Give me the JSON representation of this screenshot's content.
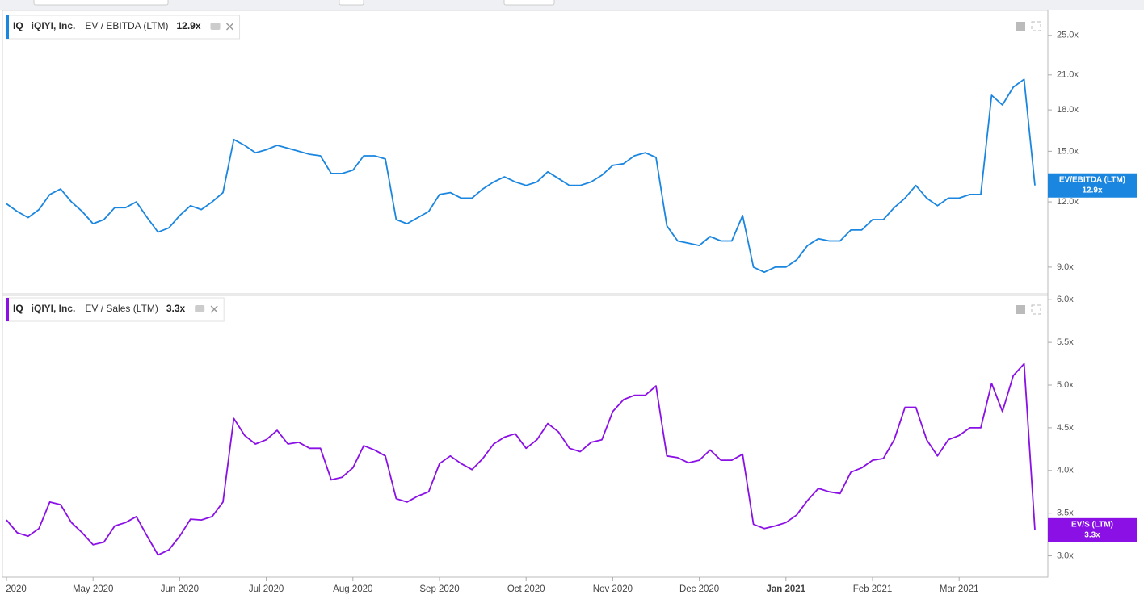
{
  "chart_data": [
    {
      "type": "line",
      "log": true,
      "ticker": "IQ",
      "company": "iQIYI, Inc.",
      "series": [
        {
          "name": "EV / EBITDA (LTM)",
          "tag": "EV/EBITDA (LTM)",
          "value_label": "12.9x",
          "color": "#1a86e0",
          "values": [
            11.9,
            11.5,
            11.2,
            11.6,
            12.4,
            12.7,
            12.0,
            11.5,
            10.9,
            11.1,
            11.7,
            11.7,
            12.0,
            11.2,
            10.5,
            10.7,
            11.3,
            11.8,
            11.6,
            12.0,
            12.5,
            15.8,
            15.4,
            14.9,
            15.1,
            15.4,
            15.2,
            15.0,
            14.8,
            14.7,
            13.6,
            13.6,
            13.8,
            14.7,
            14.7,
            14.5,
            11.1,
            10.9,
            11.2,
            11.5,
            12.4,
            12.5,
            12.2,
            12.2,
            12.7,
            13.1,
            13.4,
            13.1,
            12.9,
            13.1,
            13.7,
            13.3,
            12.9,
            12.9,
            13.1,
            13.5,
            14.1,
            14.2,
            14.7,
            14.9,
            14.6,
            10.8,
            10.1,
            10.0,
            9.9,
            10.3,
            10.1,
            10.1,
            11.3,
            9.0,
            8.8,
            9.0,
            9.0,
            9.3,
            9.9,
            10.2,
            10.1,
            10.1,
            10.6,
            10.6,
            11.1,
            11.1,
            11.7,
            12.2,
            12.9,
            12.2,
            11.8,
            12.2,
            12.2,
            12.4,
            12.4,
            19.2,
            18.4,
            19.9,
            20.6,
            12.9
          ]
        }
      ],
      "ylim": [
        8.0,
        27.8
      ],
      "yticks": [
        {
          "value": 9,
          "label": "9.0x"
        },
        {
          "value": 12,
          "label": "12.0x"
        },
        {
          "value": 15,
          "label": "15.0x"
        },
        {
          "value": 18,
          "label": "18.0x"
        },
        {
          "value": 21,
          "label": "21.0x"
        },
        {
          "value": 25,
          "label": "25.0x"
        }
      ],
      "grid": false
    },
    {
      "type": "line",
      "log": false,
      "ticker": "IQ",
      "company": "iQIYI, Inc.",
      "series": [
        {
          "name": "EV / Sales (LTM)",
          "tag": "EV/S (LTM)",
          "value_label": "3.3x",
          "color": "#8a10e6",
          "values": [
            3.42,
            3.27,
            3.23,
            3.32,
            3.63,
            3.6,
            3.39,
            3.27,
            3.13,
            3.16,
            3.35,
            3.39,
            3.46,
            3.23,
            3.01,
            3.07,
            3.23,
            3.43,
            3.42,
            3.46,
            3.63,
            4.61,
            4.41,
            4.31,
            4.36,
            4.47,
            4.31,
            4.33,
            4.26,
            4.26,
            3.89,
            3.92,
            4.03,
            4.29,
            4.24,
            4.17,
            3.67,
            3.63,
            3.7,
            3.75,
            4.08,
            4.17,
            4.08,
            4.01,
            4.14,
            4.31,
            4.39,
            4.43,
            4.26,
            4.36,
            4.55,
            4.45,
            4.26,
            4.22,
            4.33,
            4.36,
            4.69,
            4.83,
            4.88,
            4.88,
            4.99,
            4.17,
            4.15,
            4.09,
            4.12,
            4.24,
            4.12,
            4.12,
            4.19,
            3.37,
            3.32,
            3.35,
            3.39,
            3.48,
            3.65,
            3.79,
            3.75,
            3.73,
            3.98,
            4.03,
            4.12,
            4.14,
            4.36,
            4.74,
            4.74,
            4.36,
            4.17,
            4.36,
            4.41,
            4.5,
            4.5,
            5.02,
            4.69,
            5.11,
            5.25,
            3.3
          ]
        }
      ],
      "categories": [
        "2020",
        null,
        null,
        null,
        null,
        null,
        null,
        null,
        "May 2020",
        null,
        null,
        null,
        null,
        null,
        null,
        null,
        "Jun 2020",
        null,
        null,
        null,
        null,
        null,
        null,
        null,
        "Jul 2020",
        null,
        null,
        null,
        null,
        null,
        null,
        null,
        "Aug 2020",
        null,
        null,
        null,
        null,
        null,
        null,
        null,
        "Sep 2020",
        null,
        null,
        null,
        null,
        null,
        null,
        null,
        "Oct 2020",
        null,
        null,
        null,
        null,
        null,
        null,
        null,
        "Nov 2020",
        null,
        null,
        null,
        null,
        null,
        null,
        null,
        "Dec 2020",
        null,
        null,
        null,
        null,
        null,
        null,
        null,
        "Jan 2021",
        null,
        null,
        null,
        null,
        null,
        null,
        null,
        "Feb 2021",
        null,
        null,
        null,
        null,
        null,
        null,
        null,
        "Mar 2021",
        null,
        null,
        null,
        null,
        null,
        null,
        null
      ],
      "ylim": [
        2.75,
        6.04
      ],
      "yticks": [
        {
          "value": 3,
          "label": "3.0x"
        },
        {
          "value": 3.5,
          "label": "3.5x"
        },
        {
          "value": 4,
          "label": "4.0x"
        },
        {
          "value": 4.5,
          "label": "4.5x"
        },
        {
          "value": 5,
          "label": "5.0x"
        },
        {
          "value": 5.5,
          "label": "5.5x"
        },
        {
          "value": 6,
          "label": "6.0x"
        }
      ],
      "grid": false
    }
  ]
}
